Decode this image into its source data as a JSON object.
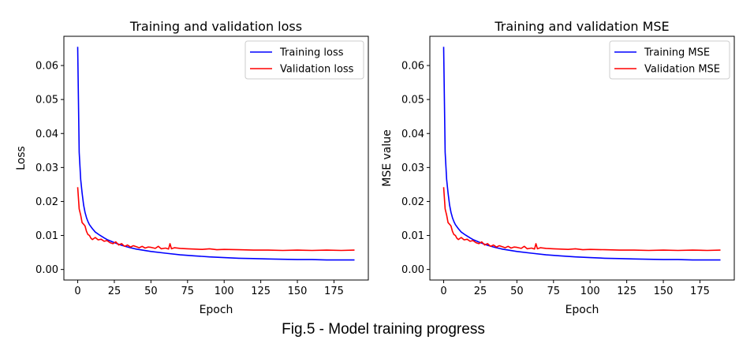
{
  "caption": "Fig.5 - Model training progress",
  "chart_data": [
    {
      "type": "line",
      "title": "Training and validation loss",
      "xlabel": "Epoch",
      "ylabel": "Loss",
      "xlim": [
        -9.45,
        198.45
      ],
      "ylim": [
        -0.0031,
        0.0686
      ],
      "xticks": [
        0,
        25,
        50,
        75,
        100,
        125,
        150,
        175
      ],
      "yticks": [
        0.0,
        0.01,
        0.02,
        0.03,
        0.04,
        0.05,
        0.06
      ],
      "ytick_labels": [
        "0.00",
        "0.01",
        "0.02",
        "0.03",
        "0.04",
        "0.05",
        "0.06"
      ],
      "grid": false,
      "legend_position": "upper right",
      "series": [
        {
          "name": "Training loss",
          "color": "#0000ff",
          "x": [
            0,
            1,
            2,
            3,
            4,
            5,
            6,
            7,
            8,
            10,
            12,
            15,
            18,
            20,
            25,
            30,
            35,
            40,
            50,
            60,
            70,
            80,
            90,
            100,
            110,
            120,
            130,
            140,
            150,
            160,
            170,
            180,
            189
          ],
          "y": [
            0.0655,
            0.0345,
            0.0265,
            0.0225,
            0.019,
            0.0168,
            0.0152,
            0.0141,
            0.0132,
            0.012,
            0.011,
            0.0101,
            0.0093,
            0.0088,
            0.0079,
            0.0071,
            0.0065,
            0.006,
            0.0053,
            0.0048,
            0.0043,
            0.004,
            0.0037,
            0.0035,
            0.0033,
            0.0032,
            0.0031,
            0.003,
            0.0029,
            0.0029,
            0.0028,
            0.0028,
            0.0028
          ]
        },
        {
          "name": "Validation loss",
          "color": "#ff0000",
          "x": [
            0,
            1,
            2,
            3,
            4,
            5,
            6,
            7,
            8,
            9,
            10,
            12,
            14,
            16,
            18,
            20,
            22,
            24,
            26,
            28,
            30,
            32,
            34,
            36,
            38,
            40,
            42,
            44,
            46,
            48,
            50,
            53,
            55,
            57,
            60,
            62,
            63,
            64,
            66,
            70,
            75,
            80,
            85,
            90,
            95,
            100,
            110,
            120,
            130,
            140,
            150,
            160,
            170,
            180,
            189
          ],
          "y": [
            0.0242,
            0.0178,
            0.016,
            0.0138,
            0.0133,
            0.0128,
            0.0112,
            0.0103,
            0.01,
            0.0092,
            0.0088,
            0.0094,
            0.0087,
            0.0089,
            0.0083,
            0.0085,
            0.0079,
            0.0076,
            0.0081,
            0.0072,
            0.0076,
            0.0068,
            0.0072,
            0.0066,
            0.007,
            0.0067,
            0.0064,
            0.0068,
            0.0063,
            0.0066,
            0.0065,
            0.0062,
            0.0068,
            0.0061,
            0.0063,
            0.006,
            0.0076,
            0.0061,
            0.0064,
            0.0062,
            0.0061,
            0.006,
            0.0059,
            0.0061,
            0.0058,
            0.0059,
            0.0058,
            0.0057,
            0.0057,
            0.0056,
            0.0057,
            0.0056,
            0.0057,
            0.0056,
            0.0057
          ]
        }
      ]
    },
    {
      "type": "line",
      "title": "Training and validation MSE",
      "xlabel": "Epoch",
      "ylabel": "MSE value",
      "xlim": [
        -9.45,
        198.45
      ],
      "ylim": [
        -0.0031,
        0.0686
      ],
      "xticks": [
        0,
        25,
        50,
        75,
        100,
        125,
        150,
        175
      ],
      "yticks": [
        0.0,
        0.01,
        0.02,
        0.03,
        0.04,
        0.05,
        0.06
      ],
      "ytick_labels": [
        "0.00",
        "0.01",
        "0.02",
        "0.03",
        "0.04",
        "0.05",
        "0.06"
      ],
      "grid": false,
      "legend_position": "upper right",
      "series": [
        {
          "name": "Training MSE",
          "color": "#0000ff",
          "x": [
            0,
            1,
            2,
            3,
            4,
            5,
            6,
            7,
            8,
            10,
            12,
            15,
            18,
            20,
            25,
            30,
            35,
            40,
            50,
            60,
            70,
            80,
            90,
            100,
            110,
            120,
            130,
            140,
            150,
            160,
            170,
            180,
            189
          ],
          "y": [
            0.0655,
            0.0345,
            0.0265,
            0.0225,
            0.019,
            0.0168,
            0.0152,
            0.0141,
            0.0132,
            0.012,
            0.011,
            0.0101,
            0.0093,
            0.0088,
            0.0079,
            0.0071,
            0.0065,
            0.006,
            0.0053,
            0.0048,
            0.0043,
            0.004,
            0.0037,
            0.0035,
            0.0033,
            0.0032,
            0.0031,
            0.003,
            0.0029,
            0.0029,
            0.0028,
            0.0028,
            0.0028
          ]
        },
        {
          "name": "Validation MSE",
          "color": "#ff0000",
          "x": [
            0,
            1,
            2,
            3,
            4,
            5,
            6,
            7,
            8,
            9,
            10,
            12,
            14,
            16,
            18,
            20,
            22,
            24,
            26,
            28,
            30,
            32,
            34,
            36,
            38,
            40,
            42,
            44,
            46,
            48,
            50,
            53,
            55,
            57,
            60,
            62,
            63,
            64,
            66,
            70,
            75,
            80,
            85,
            90,
            95,
            100,
            110,
            120,
            130,
            140,
            150,
            160,
            170,
            180,
            189
          ],
          "y": [
            0.0242,
            0.0178,
            0.016,
            0.0138,
            0.0133,
            0.0128,
            0.0112,
            0.0103,
            0.01,
            0.0092,
            0.0088,
            0.0094,
            0.0087,
            0.0089,
            0.0083,
            0.0085,
            0.0079,
            0.0076,
            0.0081,
            0.0072,
            0.0076,
            0.0068,
            0.0072,
            0.0066,
            0.007,
            0.0067,
            0.0064,
            0.0068,
            0.0063,
            0.0066,
            0.0065,
            0.0062,
            0.0068,
            0.0061,
            0.0063,
            0.006,
            0.0076,
            0.0061,
            0.0064,
            0.0062,
            0.0061,
            0.006,
            0.0059,
            0.0061,
            0.0058,
            0.0059,
            0.0058,
            0.0057,
            0.0057,
            0.0056,
            0.0057,
            0.0056,
            0.0057,
            0.0056,
            0.0057
          ]
        }
      ]
    }
  ]
}
